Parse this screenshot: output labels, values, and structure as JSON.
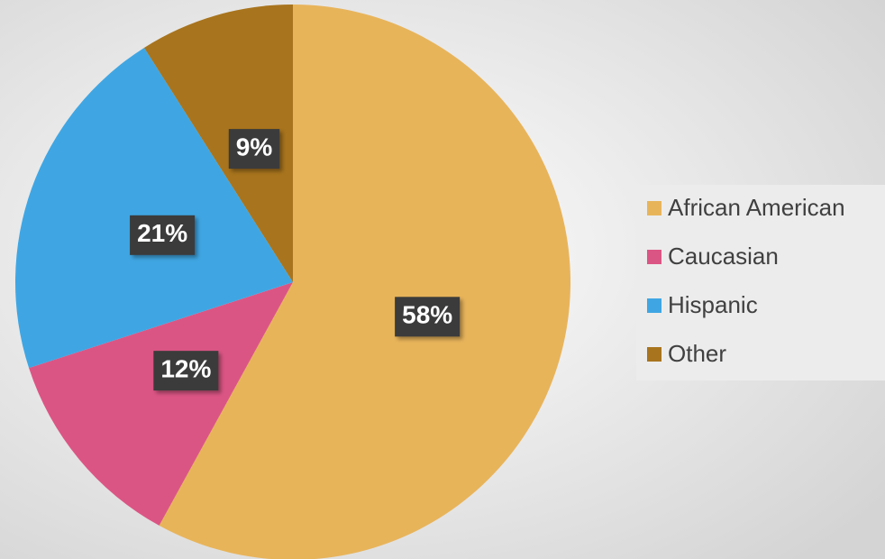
{
  "chart_data": {
    "type": "pie",
    "categories": [
      "African American",
      "Caucasian",
      "Hispanic",
      "Other"
    ],
    "values": [
      58,
      12,
      21,
      9
    ],
    "value_labels": [
      "58%",
      "12%",
      "21%",
      "9%"
    ],
    "colors": [
      "#e8b45a",
      "#db5584",
      "#3fa6e3",
      "#a8741d"
    ],
    "legend": "right"
  }
}
